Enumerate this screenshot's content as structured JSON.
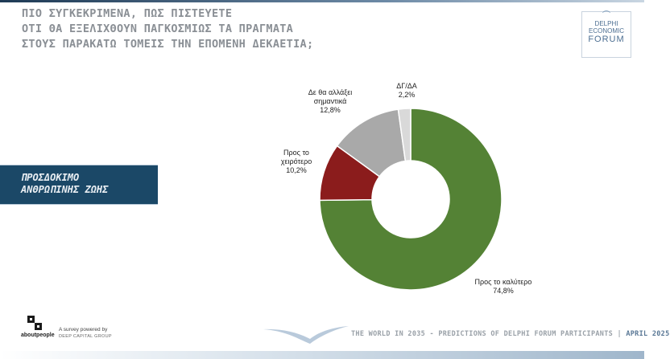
{
  "header": {
    "title_lines": [
      "ΠΙΟ ΣΥΓΚΕΚΡΙΜΕΝΑ, ΠΩΣ ΠΙΣΤΕΥΕΤΕ",
      "ΟΤΙ ΘΑ ΕΞΕΛΙΧΘΟΥΝ ΠΑΓΚΟΣΜΙΩΣ ΤΑ ΠΡΑΓΜΑΤΑ",
      "ΣΤΟΥΣ ΠΑΡΑΚΑΤΩ ΤΟΜΕΙΣ ΤΗΝ ΕΠΟΜΕΝΗ ΔΕΚΑΕΤΙΑ;"
    ]
  },
  "logo": {
    "line1": "DELPHI",
    "line2": "ECONOMIC",
    "line3": "FORUM",
    "icon": "crown-icon"
  },
  "category": {
    "line1": "ΠΡΟΣΔΟΚΙΜΟ",
    "line2": "ΑΝΘΡΩΠΙΝΗΣ ΖΩΗΣ",
    "color": "#1b4867"
  },
  "chart_data": {
    "type": "pie",
    "donut": true,
    "slices": [
      {
        "label": [
          "Προς το καλύτερο"
        ],
        "value_label": "74,8%",
        "value": 74.8,
        "color": "#548235"
      },
      {
        "label": [
          "Προς το",
          "χειρότερο"
        ],
        "value_label": "10,2%",
        "value": 10.2,
        "color": "#8b1c1c"
      },
      {
        "label": [
          "Δε θα αλλάξει",
          "σημαντικά"
        ],
        "value_label": "12,8%",
        "value": 12.8,
        "color": "#a9a9a9"
      },
      {
        "label": [
          "ΔΓ/ΔΑ"
        ],
        "value_label": "2,2%",
        "value": 2.2,
        "color": "#d9d9d9"
      }
    ]
  },
  "footer": {
    "brand": "aboutpeople",
    "powered_line1": "A survey powered by",
    "powered_line2": "DEEP CAPITAL GROUP",
    "caption": "THE WORLD IN 2035 - PREDICTIONS OF DELPHI FORUM PARTICIPANTS",
    "separator": " | ",
    "month": "APRIL 2025"
  }
}
